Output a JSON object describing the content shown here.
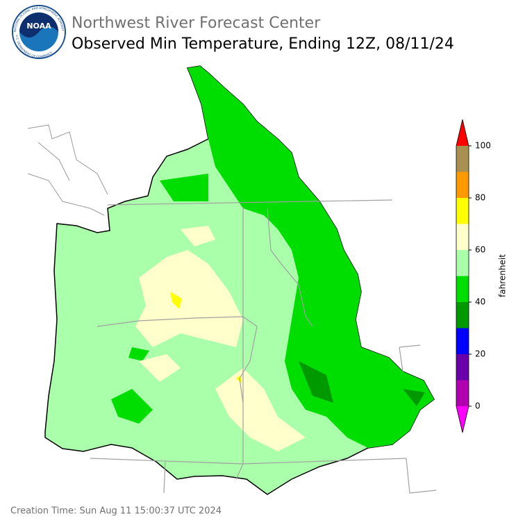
{
  "header": {
    "title": "Northwest River Forecast Center",
    "subtitle": "Observed Min Temperature, Ending 12Z, 08/11/24"
  },
  "logo": {
    "text": "NOAA",
    "ring_top": "NATIONAL OCEANIC AND ATMOSPHERIC ADMINISTRATION",
    "ring_bottom": "U.S. DEPARTMENT OF COMMERCE"
  },
  "colorbar": {
    "label": "fahrenheit",
    "bounds": [
      0,
      10,
      20,
      30,
      40,
      50,
      60,
      70,
      80,
      90,
      100
    ],
    "colors": [
      "#b000b0",
      "#6a00aa",
      "#0000ff",
      "#009900",
      "#00dd00",
      "#aaffaa",
      "#ffffcc",
      "#ffff00",
      "#ff9900",
      "#a89050"
    ],
    "under_color": "#ff00ff",
    "over_color": "#ff0000",
    "ticks": [
      0,
      20,
      40,
      60,
      80,
      100
    ]
  },
  "footer": {
    "creation_time": "Creation Time: Sun Aug 11 15:00:37 UTC 2024"
  }
}
